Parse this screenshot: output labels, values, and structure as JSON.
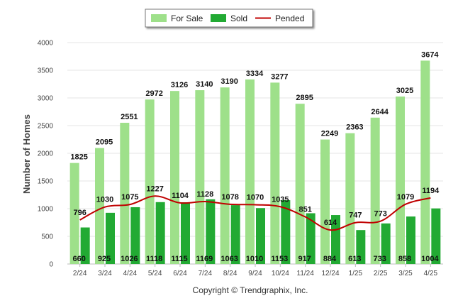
{
  "chart_data": {
    "type": "bar",
    "categories": [
      "2/24",
      "3/24",
      "4/24",
      "5/24",
      "6/24",
      "7/24",
      "8/24",
      "9/24",
      "10/24",
      "11/24",
      "12/24",
      "1/25",
      "2/25",
      "3/25",
      "4/25"
    ],
    "series": [
      {
        "name": "For Sale",
        "kind": "bar",
        "color": "#9ee08a",
        "values": [
          1825,
          2095,
          2551,
          2972,
          3126,
          3140,
          3190,
          3334,
          3277,
          2895,
          2249,
          2363,
          2644,
          3025,
          3674
        ]
      },
      {
        "name": "Sold",
        "kind": "bar",
        "color": "#22aa33",
        "values": [
          660,
          925,
          1026,
          1118,
          1115,
          1169,
          1063,
          1010,
          1153,
          917,
          884,
          613,
          733,
          858,
          1004
        ]
      },
      {
        "name": "Pended",
        "kind": "line",
        "color": "#c00000",
        "values": [
          796,
          1030,
          1075,
          1227,
          1104,
          1128,
          1078,
          1070,
          1035,
          851,
          614,
          747,
          773,
          1079,
          1194
        ]
      }
    ],
    "title": "",
    "xlabel": "",
    "ylabel": "Number of Homes",
    "ylim": [
      0,
      4000
    ],
    "yticks": [
      "0",
      "500",
      "1000",
      "1500",
      "2000",
      "2500",
      "3000",
      "3500",
      "4000"
    ],
    "legend_position": "top-center",
    "grid": true
  },
  "copyright": "Copyright © Trendgraphix, Inc."
}
